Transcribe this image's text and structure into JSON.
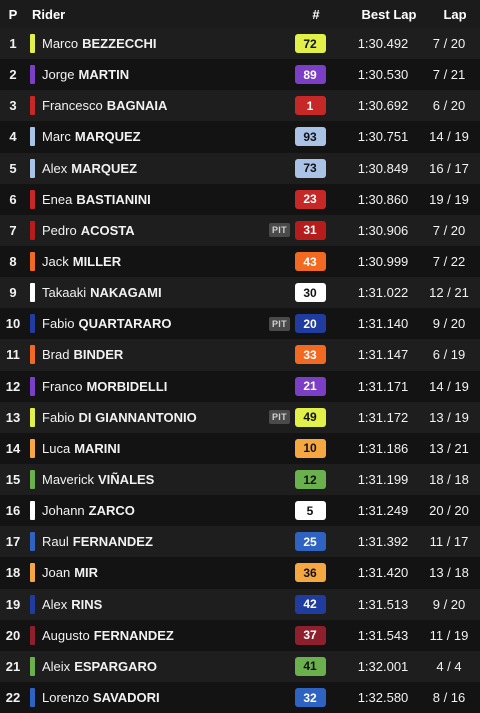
{
  "header": {
    "pos": "P",
    "rider": "Rider",
    "number": "#",
    "best_lap": "Best Lap",
    "lap": "Lap"
  },
  "rows": [
    {
      "pos": "1",
      "first": "Marco",
      "last": "BEZZECCHI",
      "pit": "",
      "number": "72",
      "best": "1:30.492",
      "lap": "7 / 20",
      "stripe": "#e2f04a",
      "badge_bg": "#e2f04a",
      "badge_fg": "#111111"
    },
    {
      "pos": "2",
      "first": "Jorge",
      "last": "MARTIN",
      "pit": "",
      "number": "89",
      "best": "1:30.530",
      "lap": "7 / 21",
      "stripe": "#7a3fc4",
      "badge_bg": "#7a3fc4",
      "badge_fg": "#ffffff"
    },
    {
      "pos": "3",
      "first": "Francesco",
      "last": "BAGNAIA",
      "pit": "",
      "number": "1",
      "best": "1:30.692",
      "lap": "6 / 20",
      "stripe": "#c62828",
      "badge_bg": "#c62828",
      "badge_fg": "#ffffff"
    },
    {
      "pos": "4",
      "first": "Marc",
      "last": "MARQUEZ",
      "pit": "",
      "number": "93",
      "best": "1:30.751",
      "lap": "14 / 19",
      "stripe": "#a9c2e6",
      "badge_bg": "#a9c2e6",
      "badge_fg": "#111111"
    },
    {
      "pos": "5",
      "first": "Alex",
      "last": "MARQUEZ",
      "pit": "",
      "number": "73",
      "best": "1:30.849",
      "lap": "16 / 17",
      "stripe": "#a9c2e6",
      "badge_bg": "#a9c2e6",
      "badge_fg": "#111111"
    },
    {
      "pos": "6",
      "first": "Enea",
      "last": "BASTIANINI",
      "pit": "",
      "number": "23",
      "best": "1:30.860",
      "lap": "19 / 19",
      "stripe": "#c62828",
      "badge_bg": "#c62828",
      "badge_fg": "#ffffff"
    },
    {
      "pos": "7",
      "first": "Pedro",
      "last": "ACOSTA",
      "pit": "PIT",
      "number": "31",
      "best": "1:30.906",
      "lap": "7 / 20",
      "stripe": "#b71c1c",
      "badge_bg": "#b71c1c",
      "badge_fg": "#ffffff"
    },
    {
      "pos": "8",
      "first": "Jack",
      "last": "MILLER",
      "pit": "",
      "number": "43",
      "best": "1:30.999",
      "lap": "7 / 22",
      "stripe": "#f26a21",
      "badge_bg": "#f26a21",
      "badge_fg": "#ffffff"
    },
    {
      "pos": "9",
      "first": "Takaaki",
      "last": "NAKAGAMI",
      "pit": "",
      "number": "30",
      "best": "1:31.022",
      "lap": "12 / 21",
      "stripe": "#ffffff",
      "badge_bg": "#ffffff",
      "badge_fg": "#111111"
    },
    {
      "pos": "10",
      "first": "Fabio",
      "last": "QUARTARARO",
      "pit": "PIT",
      "number": "20",
      "best": "1:31.140",
      "lap": "9 / 20",
      "stripe": "#1f3c9e",
      "badge_bg": "#1f3c9e",
      "badge_fg": "#ffffff"
    },
    {
      "pos": "11",
      "first": "Brad",
      "last": "BINDER",
      "pit": "",
      "number": "33",
      "best": "1:31.147",
      "lap": "6 / 19",
      "stripe": "#f26a21",
      "badge_bg": "#f26a21",
      "badge_fg": "#ffffff"
    },
    {
      "pos": "12",
      "first": "Franco",
      "last": "MORBIDELLI",
      "pit": "",
      "number": "21",
      "best": "1:31.171",
      "lap": "14 / 19",
      "stripe": "#7a3fc4",
      "badge_bg": "#7a3fc4",
      "badge_fg": "#ffffff"
    },
    {
      "pos": "13",
      "first": "Fabio",
      "last": "DI GIANNANTONIO",
      "pit": "PIT",
      "number": "49",
      "best": "1:31.172",
      "lap": "13 / 19",
      "stripe": "#e2f04a",
      "badge_bg": "#e2f04a",
      "badge_fg": "#111111"
    },
    {
      "pos": "14",
      "first": "Luca",
      "last": "MARINI",
      "pit": "",
      "number": "10",
      "best": "1:31.186",
      "lap": "13 / 21",
      "stripe": "#f5a742",
      "badge_bg": "#f5a742",
      "badge_fg": "#111111"
    },
    {
      "pos": "15",
      "first": "Maverick",
      "last": "VIÑALES",
      "pit": "",
      "number": "12",
      "best": "1:31.199",
      "lap": "18 / 18",
      "stripe": "#6ab04c",
      "badge_bg": "#6ab04c",
      "badge_fg": "#111111"
    },
    {
      "pos": "16",
      "first": "Johann",
      "last": "ZARCO",
      "pit": "",
      "number": "5",
      "best": "1:31.249",
      "lap": "20 / 20",
      "stripe": "#ffffff",
      "badge_bg": "#ffffff",
      "badge_fg": "#111111"
    },
    {
      "pos": "17",
      "first": "Raul",
      "last": "FERNANDEZ",
      "pit": "",
      "number": "25",
      "best": "1:31.392",
      "lap": "11 / 17",
      "stripe": "#2f63c2",
      "badge_bg": "#2f63c2",
      "badge_fg": "#ffffff"
    },
    {
      "pos": "18",
      "first": "Joan",
      "last": "MIR",
      "pit": "",
      "number": "36",
      "best": "1:31.420",
      "lap": "13 / 18",
      "stripe": "#f5a742",
      "badge_bg": "#f5a742",
      "badge_fg": "#111111"
    },
    {
      "pos": "19",
      "first": "Alex",
      "last": "RINS",
      "pit": "",
      "number": "42",
      "best": "1:31.513",
      "lap": "9 / 20",
      "stripe": "#1f3c9e",
      "badge_bg": "#1f3c9e",
      "badge_fg": "#ffffff"
    },
    {
      "pos": "20",
      "first": "Augusto",
      "last": "FERNANDEZ",
      "pit": "",
      "number": "37",
      "best": "1:31.543",
      "lap": "11 / 19",
      "stripe": "#8e1f2c",
      "badge_bg": "#8e1f2c",
      "badge_fg": "#ffffff"
    },
    {
      "pos": "21",
      "first": "Aleix",
      "last": "ESPARGARO",
      "pit": "",
      "number": "41",
      "best": "1:32.001",
      "lap": "4 / 4",
      "stripe": "#6ab04c",
      "badge_bg": "#6ab04c",
      "badge_fg": "#111111"
    },
    {
      "pos": "22",
      "first": "Lorenzo",
      "last": "SAVADORI",
      "pit": "",
      "number": "32",
      "best": "1:32.580",
      "lap": "8 / 16",
      "stripe": "#2f63c2",
      "badge_bg": "#2f63c2",
      "badge_fg": "#ffffff"
    }
  ]
}
